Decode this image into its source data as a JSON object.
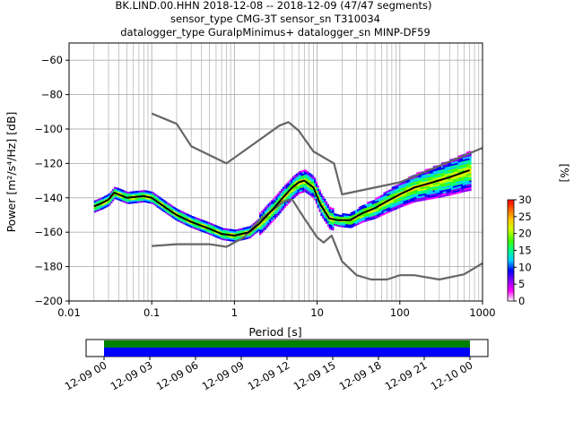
{
  "title": {
    "line1": "BK.LIND.00.HHN   2018-12-08 -- 2018-12-09  (47/47 segments)",
    "line2": "sensor_type CMG-3T sensor_sn T310034",
    "line3": "datalogger_type GuralpMinimus+ datalogger_sn MINP-DF59"
  },
  "colorbar": {
    "label": "[%]",
    "ticks": [
      "0",
      "5",
      "10",
      "15",
      "20",
      "25",
      "30"
    ],
    "range": [
      0,
      30
    ],
    "colors": [
      "#ffffff",
      "#ff00ff",
      "#8800ff",
      "#0000ff",
      "#00ccff",
      "#00ff88",
      "#44ff00",
      "#ccff00",
      "#ffcc00",
      "#ff6600",
      "#ff0000"
    ]
  },
  "timeline": {
    "ticks": [
      "12-09 00",
      "12-09 03",
      "12-09 06",
      "12-09 09",
      "12-09 12",
      "12-09 15",
      "12-09 18",
      "12-09 21",
      "12-10 00"
    ],
    "colors": {
      "coverage": "#008000",
      "data": "#0000ff"
    }
  },
  "chart_data": {
    "type": "line",
    "xlabel": "Period [s]",
    "ylabel": "Power [m²/s⁴/Hz] [dB]",
    "xscale": "log",
    "xlim": [
      0.01,
      1000
    ],
    "ylim": [
      -200,
      -50
    ],
    "xticks": [
      "0.01",
      "0.1",
      "1",
      "10",
      "100",
      "1000"
    ],
    "yticks": [
      "−60",
      "−80",
      "−100",
      "−120",
      "−140",
      "−160",
      "−180",
      "−200"
    ],
    "grid": true,
    "series": [
      {
        "x": [
          0.1,
          0.2,
          0.3,
          0.8,
          3.5,
          4.5,
          6,
          9,
          16,
          20,
          100,
          1000
        ],
        "y": [
          -91,
          -97,
          -110,
          -120,
          -98,
          -96,
          -101,
          -113,
          -120,
          -138,
          -131,
          -111
        ],
        "color": "#666666"
      },
      {
        "x": [
          0.1,
          0.2,
          0.5,
          0.8,
          1.3,
          2,
          4,
          5,
          7,
          10,
          12,
          15,
          20,
          30,
          45,
          70,
          100,
          150,
          300,
          600,
          1000
        ],
        "y": [
          -168,
          -167,
          -167,
          -168.5,
          -163,
          -153,
          -142,
          -141,
          -152,
          -163,
          -166,
          -162,
          -177,
          -185,
          -187.5,
          -187.5,
          -185,
          -185,
          -187.5,
          -184.5,
          -178
        ],
        "color": "#666666"
      },
      {
        "x": [
          0.02,
          0.025,
          0.03,
          0.035,
          0.05,
          0.08,
          0.1,
          0.15,
          0.2,
          0.3,
          0.5,
          0.7,
          1,
          1.5,
          2,
          3,
          4,
          5,
          6,
          7,
          9,
          11,
          14,
          18,
          25,
          35,
          50,
          70,
          100,
          150,
          250,
          400,
          600,
          700
        ],
        "y": [
          -145,
          -143,
          -141,
          -137,
          -140,
          -139,
          -140,
          -146,
          -150,
          -154,
          -158,
          -161,
          -162,
          -160,
          -155,
          -146,
          -139,
          -134,
          -131,
          -130,
          -134,
          -144,
          -152,
          -153,
          -153,
          -149,
          -146,
          -142,
          -138,
          -134,
          -131,
          -128,
          -125,
          -124
        ],
        "color": "#000000"
      }
    ]
  }
}
